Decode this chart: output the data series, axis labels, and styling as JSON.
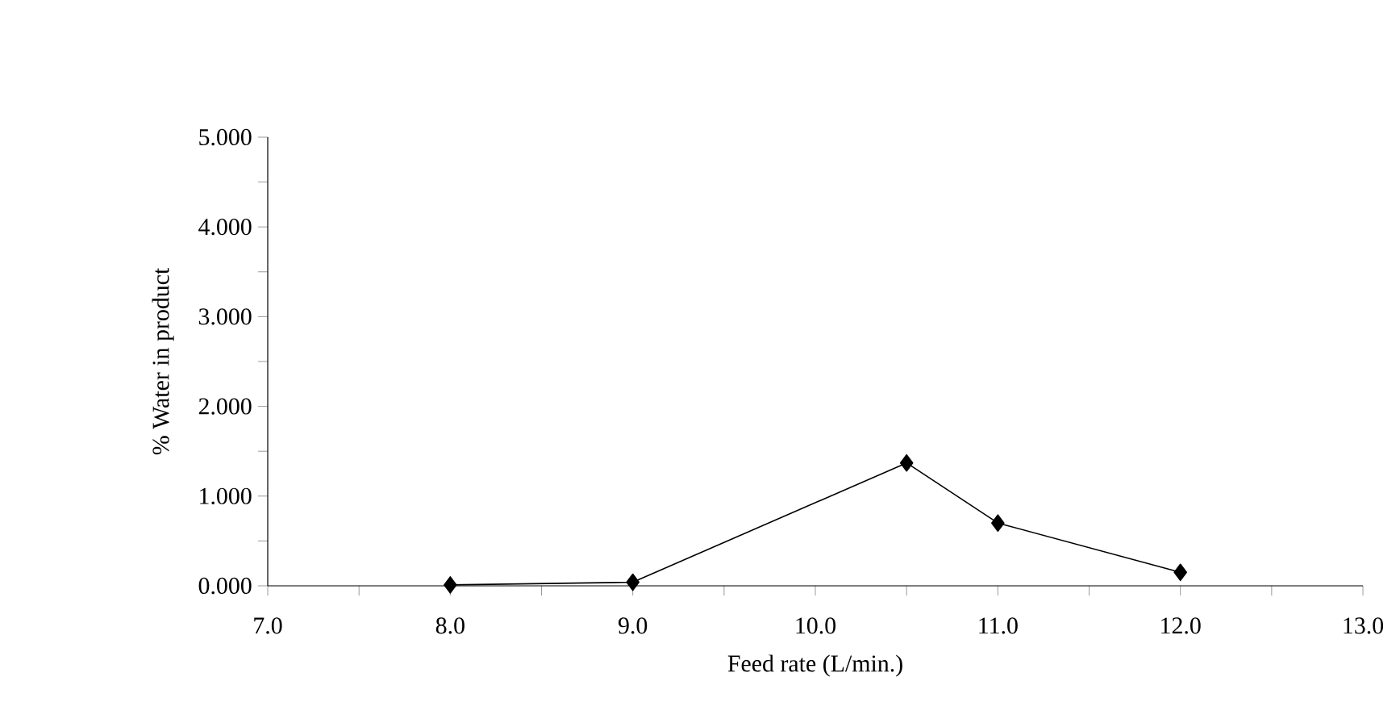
{
  "chart_data": {
    "type": "line",
    "xlabel": "Feed rate (L/min.)",
    "ylabel": "% Water in product",
    "x": [
      8.0,
      9.0,
      10.5,
      11.0,
      12.0
    ],
    "series": [
      {
        "color": "#000000",
        "values": [
          0.01,
          0.04,
          1.37,
          0.7,
          0.15
        ]
      }
    ],
    "xlim": [
      7.0,
      13.0
    ],
    "xticks": [
      {
        "value": 7.0,
        "label": "7.0"
      },
      {
        "value": 7.5,
        "label": null
      },
      {
        "value": 8.0,
        "label": "8.0"
      },
      {
        "value": 8.5,
        "label": null
      },
      {
        "value": 9.0,
        "label": "9.0"
      },
      {
        "value": 9.5,
        "label": null
      },
      {
        "value": 10.0,
        "label": "10.0"
      },
      {
        "value": 10.5,
        "label": null
      },
      {
        "value": 11.0,
        "label": "11.0"
      },
      {
        "value": 11.5,
        "label": null
      },
      {
        "value": 12.0,
        "label": "12.0"
      },
      {
        "value": 12.5,
        "label": null
      },
      {
        "value": 13.0,
        "label": "13.0"
      }
    ],
    "ylim": [
      0,
      5
    ],
    "yticks": [
      {
        "value": 0,
        "label": "0.000"
      },
      {
        "value": 0.5,
        "label": null
      },
      {
        "value": 1,
        "label": "1.000"
      },
      {
        "value": 1.5,
        "label": null
      },
      {
        "value": 2,
        "label": "2.000"
      },
      {
        "value": 2.5,
        "label": null
      },
      {
        "value": 3,
        "label": "3.000"
      },
      {
        "value": 3.5,
        "label": null
      },
      {
        "value": 4,
        "label": "4.000"
      },
      {
        "value": 4.5,
        "label": null
      },
      {
        "value": 5,
        "label": "5.000"
      }
    ],
    "marker": "diamond",
    "line_style": "solid",
    "grid": false
  }
}
